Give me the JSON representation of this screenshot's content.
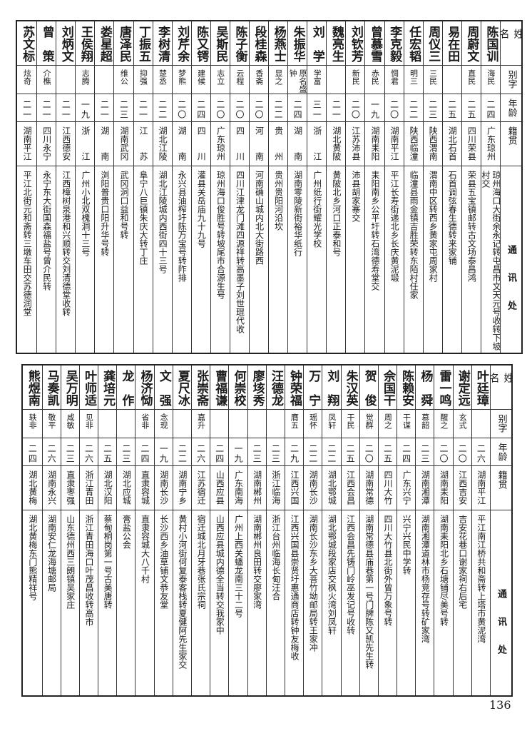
{
  "headers": {
    "name": "姓名",
    "alias": "别字",
    "age": "年龄",
    "origin": "籍贯",
    "address": "通讯处"
  },
  "tables": [
    {
      "rows": [
        {
          "name": "陈国训",
          "alias": "海民",
          "age": "二四",
          "origin": "广东琼州",
          "address": "琼州海口大街余永记转屯昌市文天元号收转下坡村交"
        },
        {
          "name": "周蔚文",
          "alias": "直民",
          "age": "二五",
          "origin": "四川荣县",
          "address": "荣县五宝镇邮转古文场泰昌鸿"
        },
        {
          "name": "易在田",
          "alias": "",
          "age": "二五",
          "origin": "湖北石首",
          "address": "石首调弦春生德转来家铺"
        },
        {
          "name": "周仪三",
          "alias": "三民",
          "age": "二三",
          "origin": "陕西渭南",
          "address": "渭南中区转西乡黄家屯周家村"
        },
        {
          "name": "任宏韬",
          "alias": "明三",
          "age": "二二",
          "origin": "陕西临潼",
          "address": "临潼县雨金镇吉胜荣转东陌村任家"
        },
        {
          "name": "李克毅",
          "alias": "惆君",
          "age": "二〇",
          "origin": "湖南平江",
          "address": "平江长寿街递北乡长庆黄泥塅"
        },
        {
          "name": "曾慕雪",
          "alias": "赤民",
          "age": "一九",
          "origin": "湖南耒阳",
          "address": "耒阳南乡公平圩转石湾德寿堂交"
        },
        {
          "name": "刘钦芳",
          "alias": "新民",
          "age": "二〇",
          "origin": "江苏沛县",
          "address": "沛县胡家寨交"
        },
        {
          "name": "魏亮生",
          "alias": "",
          "age": "二一",
          "origin": "湖北黄陂",
          "address": "黄陂北乡河口正泰和号"
        },
        {
          "name": "刘　学",
          "alias": "学富",
          "age": "三一",
          "origin": "浙　　江",
          "address": "广州纸行街耀光学校"
        },
        {
          "name": "朱振华",
          "alias": "原名盛钟",
          "age": "二四",
          "origin": "湖　　南",
          "address": "湖南零陵新街裕华纸行"
        },
        {
          "name": "杨燕士",
          "alias": "显之",
          "age": "二二",
          "origin": "贵　　州",
          "address": "贵州贵阳河沿坎"
        },
        {
          "name": "段桂森",
          "alias": "香斋",
          "age": "二〇",
          "origin": "河　　南",
          "address": "河南确山城内北大街路西"
        },
        {
          "name": "陈子衡",
          "alias": "云程",
          "age": "二〇",
          "origin": "四　　川",
          "address": "四川江津龙门滩四源祥转高墨子刘世琨代收"
        },
        {
          "name": "吴斯民",
          "alias": "志立",
          "age": "二〇",
          "origin": "广东琼州",
          "address": "琼州海口俊胜号转坡尾市合源生号"
        },
        {
          "name": "陈又锷",
          "alias": "建候",
          "age": "二四",
          "origin": "四　　川",
          "address": "灌县关岳庙九十九号"
        },
        {
          "name": "刘芹余",
          "alias": "梦熊",
          "age": "二〇",
          "origin": "湖　　南",
          "address": "永兴县油榨圩陈万宝号转阼排"
        },
        {
          "name": "李树清",
          "alias": "楚丞",
          "age": "二二",
          "origin": "湖北江陵",
          "address": "湖北江陵城内西街四十三号"
        },
        {
          "name": "丁振五",
          "alias": "抑强",
          "age": "二一",
          "origin": "江　　苏",
          "address": "阜宁八巨镇朱庆大转丁庄"
        },
        {
          "name": "唐泽民",
          "alias": "维公",
          "age": "二三",
          "origin": "湖南武冈",
          "address": "武冈洞口益和号转"
        },
        {
          "name": "娄星超",
          "alias": "",
          "age": "二一",
          "origin": "湖　　南",
          "address": "浏阳普贵口阳升华号转"
        },
        {
          "name": "王侯翔",
          "alias": "志腾",
          "age": "一九",
          "origin": "浙　　江",
          "address": "广州小北双槐洞十三号"
        },
        {
          "name": "刘炳文",
          "alias": "",
          "age": "二一",
          "origin": "江西德安",
          "address": "江西樟树泉港和兴顺转交刘清德堂收转"
        },
        {
          "name": "曾　策",
          "alias": "介樵",
          "age": "二一",
          "origin": "四川永宁",
          "address": "永宁东大街国森福盐号曾介民转"
        },
        {
          "name": "苏文标",
          "alias": "炫奇",
          "age": "二一",
          "origin": "湖南平江",
          "address": "平江北街元和斋转三墩车田交苏德润堂"
        }
      ]
    },
    {
      "rows": [
        {
          "name": "叶廷璋",
          "alias": "",
          "age": "二六",
          "origin": "湖南平江",
          "address": "平江南江桥共和斋转上塔市黄泥湾"
        },
        {
          "name": "谢定远",
          "alias": "玄式",
          "age": "二〇",
          "origin": "江西吉安",
          "address": "吉安花巷口谢家祠右后宅"
        },
        {
          "name": "雷一鸣",
          "alias": "醒之",
          "age": "二〇",
          "origin": "湖南耒阳",
          "address": "湖南耒阳北乡石塘铺尽美号转"
        },
        {
          "name": "杨　舜",
          "alias": "慕韶",
          "age": "二三",
          "origin": "湖南湘潭",
          "address": "湖南湘潭道林市杨竞存号转矿家湾"
        },
        {
          "name": "陈赖安",
          "alias": "干谋",
          "age": "二四",
          "origin": "广东兴宁",
          "address": "兴宁兴民中学转"
        },
        {
          "name": "佘国干",
          "alias": "周之",
          "age": "二五",
          "origin": "四川大竹",
          "address": "四川大竹县北街外曾万象号转"
        },
        {
          "name": "贺　俊",
          "alias": "觉群",
          "age": "二〇",
          "origin": "湖南常德",
          "address": "湖南常德县庙巷第一号门牌陈又凯先生转"
        },
        {
          "name": "朱汉英",
          "alias": "干民",
          "age": "二五",
          "origin": "江西会昌",
          "address": "江西会昌先铸门岭巫发记号收转"
        },
        {
          "name": "刘　翔",
          "alias": "凤轩",
          "age": "二二",
          "origin": "湖北鄂城",
          "address": "湖北鄂城段家店交枫火湾刘凤轩"
        },
        {
          "name": "万　宁",
          "alias": "瑶怀",
          "age": "二二",
          "origin": "湖南长沙",
          "address": "湖南长沙东乡大菩竹坳邮局转王家冲"
        },
        {
          "name": "钟荣福",
          "alias": "膺五",
          "age": "二九",
          "origin": "江西兴国",
          "address": "江西兴国县崇贤圩惠通商店转钟友梅收"
        },
        {
          "name": "汪德龙",
          "alias": "",
          "age": "二三",
          "origin": "浙江临海",
          "address": "浙江台州临海长甸汪合"
        },
        {
          "name": "廖垓秀",
          "alias": "",
          "age": "二三",
          "origin": "湖南郴州",
          "address": "湖南郴州良田转交廖家湾"
        },
        {
          "name": "何崇校",
          "alias": "",
          "age": "一九",
          "origin": "广东南海",
          "address": "广州上西关蟠龙南三十二号"
        },
        {
          "name": "曹福谦",
          "alias": "",
          "age": "二四",
          "origin": "山西应县",
          "address": "山西应县城内德全当转交我家中"
        },
        {
          "name": "张崇斋",
          "alias": "嘉升",
          "age": "二六",
          "origin": "江苏宿迁",
          "address": "宿迁城北月牙巷张氏宗祠"
        },
        {
          "name": "夏尺冰",
          "alias": "",
          "age": "二二",
          "origin": "湖南宁乡",
          "address": "黄村小河街何复泰客栈转夏健阿先生家交"
        },
        {
          "name": "文　强",
          "alias": "念现",
          "age": "一九",
          "origin": "湖南长沙",
          "address": "长沙西乡油草铺文恭友堂"
        },
        {
          "name": "杨济恸",
          "alias": "省非",
          "age": "二四",
          "origin": "直隶容城",
          "address": "直隶容城大八千村"
        },
        {
          "name": "龙　作",
          "alias": "",
          "age": "二三",
          "origin": "湖北应城",
          "address": "膏盐公会"
        },
        {
          "name": "龚培元",
          "alias": "",
          "age": "二五",
          "origin": "湖北汉阳",
          "address": "蔡甸桐岗第一号古美唐转"
        },
        {
          "name": "叶师适",
          "alias": "见非",
          "age": "二六",
          "origin": "浙江青田",
          "address": "浙江青田海口叶茂昌收转高市"
        },
        {
          "name": "吴万明",
          "alias": "咸敏",
          "age": "二三",
          "origin": "直隶枣强",
          "address": "山东德州西三朗镇吴家庄"
        },
        {
          "name": "马奏凯",
          "alias": "敬平",
          "age": "二六",
          "origin": "湖南永兴",
          "address": "湖南安仁龙海塘邮局"
        },
        {
          "name": "熊煜南",
          "alias": "轶非",
          "age": "二四",
          "origin": "湖北黄梅",
          "address": "湖北黄梅东门熊精祥号"
        }
      ]
    }
  ],
  "page_number": "136"
}
